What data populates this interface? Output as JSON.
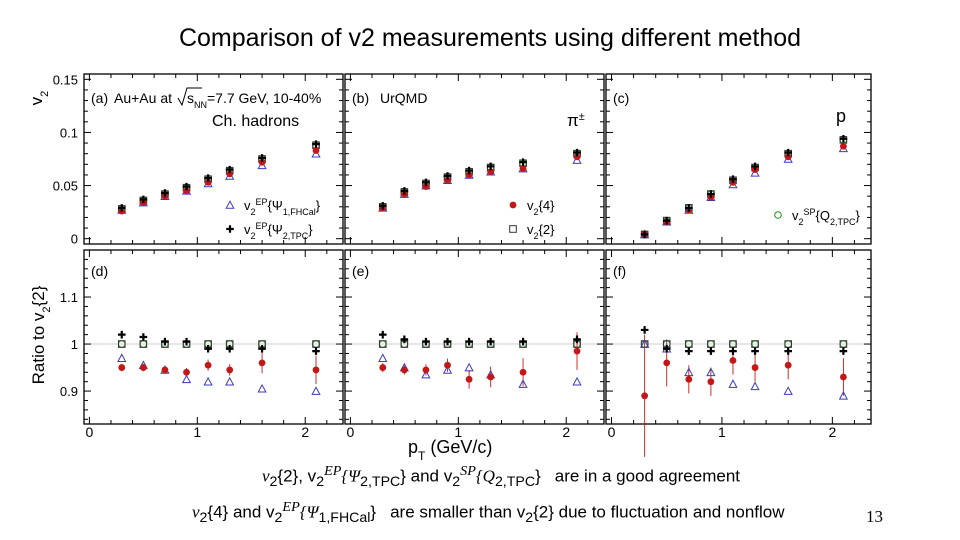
{
  "title": "Comparison of v2 measurements using different method",
  "page_number": "13",
  "notes": {
    "line1": {
      "a": "v",
      "a_sub": "2",
      "b": "{2}, v",
      "b_sub": "2",
      "b_sup": "EP",
      "c": "{Ψ",
      "c_sub": "2,TPC",
      "d": "} and v",
      "d_sub": "2",
      "d_sup": "SP",
      "e": "{Q",
      "e_sub": "2,TPC",
      "f": "}",
      "g": "are in a good agreement"
    },
    "line2": {
      "a": "v",
      "a_sub": "2",
      "b": "{4} and v",
      "b_sub": "2",
      "b_sup": "EP",
      "c": "{Ψ",
      "c_sub": "1,FHCal",
      "d": "}",
      "e": "are smaller than v",
      "e_sub": "2",
      "f": "{2} due to fluctuation and nonflow"
    }
  },
  "chart_data": {
    "type": "scatter",
    "xlabel": "p",
    "xlabel_sub": "T",
    "xlabel_rest": " (GeV/c)",
    "top_ylabel": "v",
    "top_ylabel_sub": "2",
    "bottom_ylabel": "Ratio to v",
    "bottom_ylabel_sub": "2",
    "bottom_ylabel_rest": "{2}",
    "xlim": [
      -0.05,
      2.35
    ],
    "top_ylim": [
      -0.005,
      0.155
    ],
    "bottom_ylim": [
      0.83,
      1.2
    ],
    "x_ticks": [
      "0",
      "1",
      "2"
    ],
    "top_y_ticks": [
      "0",
      "0.05",
      "0.1",
      "0.15"
    ],
    "bottom_y_ticks": [
      "0.9",
      "1",
      "1.1"
    ],
    "reference_line": 1,
    "series_legend": {
      "fhcal": {
        "name": "v",
        "sub": "2",
        "sup": "EP",
        "rest": "{Ψ",
        "rest_sub": "1,FHCal",
        "end": "}"
      },
      "tpc": {
        "name": "v",
        "sub": "2",
        "sup": "EP",
        "rest": "{Ψ",
        "rest_sub": "2,TPC",
        "end": "}"
      },
      "v24": {
        "name": "v",
        "sub": "2",
        "rest": "{4}"
      },
      "v22": {
        "name": "v",
        "sub": "2",
        "rest": "{2}"
      },
      "sp": {
        "name": "v",
        "sub": "2",
        "sup": "SP",
        "rest": "{Q",
        "rest_sub": "2,TPC",
        "end": "}"
      }
    },
    "colors": {
      "fhcal": "#3b3bbf",
      "tpc": "#000000",
      "v24": "#c41818",
      "v22": "#333333",
      "sp": "#1f8a1f",
      "ref": "#cfcfcf"
    },
    "panels": [
      {
        "label": "(a)",
        "texts": [
          "Au+Au at ",
          "s",
          "NN",
          "=7.7 GeV, 10-40%"
        ],
        "species": "Ch. hadrons",
        "legend": [
          "fhcal",
          "tpc"
        ],
        "x": [
          0.3,
          0.5,
          0.7,
          0.9,
          1.1,
          1.3,
          1.6,
          2.1
        ],
        "top": {
          "v22": [
            0.028,
            0.036,
            0.042,
            0.048,
            0.056,
            0.064,
            0.075,
            0.088
          ],
          "tpc": [
            0.029,
            0.037,
            0.043,
            0.049,
            0.057,
            0.065,
            0.076,
            0.089
          ],
          "fhcal": [
            0.027,
            0.034,
            0.04,
            0.045,
            0.052,
            0.059,
            0.069,
            0.08
          ],
          "v24": [
            0.026,
            0.034,
            0.04,
            0.045,
            0.053,
            0.061,
            0.072,
            0.083
          ],
          "sp": [
            0.028,
            0.036,
            0.042,
            0.048,
            0.056,
            0.064,
            0.075,
            0.088
          ]
        },
        "bottom": {
          "v22": [
            1.0,
            1.0,
            1.0,
            1.0,
            1.0,
            1.0,
            1.0,
            1.0
          ],
          "tpc": [
            1.02,
            1.015,
            1.005,
            1.005,
            0.99,
            0.99,
            0.99,
            0.985
          ],
          "fhcal": [
            0.97,
            0.955,
            0.945,
            0.925,
            0.92,
            0.92,
            0.905,
            0.9
          ],
          "v24": [
            0.95,
            0.95,
            0.945,
            0.94,
            0.955,
            0.945,
            0.96,
            0.945
          ],
          "v24_err": [
            0.008,
            0.008,
            0.008,
            0.009,
            0.012,
            0.012,
            0.022,
            0.03
          ],
          "sp": [
            1.0,
            1.0,
            1.0,
            1.0,
            1.0,
            1.0,
            1.0,
            1.0
          ]
        },
        "bottom_label": "(d)"
      },
      {
        "label": "(b)",
        "texts": [
          "UrQMD"
        ],
        "species": "π",
        "species_sup": "±",
        "legend": [
          "v24",
          "v22"
        ],
        "x": [
          0.3,
          0.5,
          0.7,
          0.9,
          1.1,
          1.3,
          1.6,
          2.1
        ],
        "top": {
          "v22": [
            0.03,
            0.044,
            0.052,
            0.058,
            0.063,
            0.067,
            0.071,
            0.08
          ],
          "tpc": [
            0.031,
            0.045,
            0.053,
            0.059,
            0.064,
            0.068,
            0.072,
            0.081
          ],
          "fhcal": [
            0.029,
            0.042,
            0.05,
            0.055,
            0.06,
            0.063,
            0.066,
            0.074
          ],
          "v24": [
            0.029,
            0.042,
            0.049,
            0.055,
            0.06,
            0.063,
            0.066,
            0.077
          ],
          "sp": [
            0.03,
            0.044,
            0.052,
            0.058,
            0.063,
            0.067,
            0.071,
            0.08
          ]
        },
        "bottom": {
          "v22": [
            1.0,
            1.0,
            1.0,
            1.0,
            1.0,
            1.0,
            1.0,
            1.0
          ],
          "tpc": [
            1.02,
            1.01,
            1.005,
            1.005,
            1.005,
            1.005,
            1.005,
            1.01
          ],
          "fhcal": [
            0.97,
            0.95,
            0.935,
            0.945,
            0.95,
            0.935,
            0.915,
            0.92
          ],
          "v24": [
            0.95,
            0.945,
            0.945,
            0.955,
            0.925,
            0.93,
            0.94,
            0.985
          ],
          "v24_err": [
            0.01,
            0.01,
            0.012,
            0.014,
            0.02,
            0.022,
            0.03,
            0.04
          ],
          "sp": [
            1.0,
            1.0,
            1.0,
            1.0,
            1.0,
            1.0,
            1.0,
            1.0
          ]
        },
        "bottom_label": "(e)"
      },
      {
        "label": "(c)",
        "texts": [],
        "species": "p",
        "legend": [
          "sp"
        ],
        "x": [
          0.3,
          0.5,
          0.7,
          0.9,
          1.1,
          1.3,
          1.6,
          2.1
        ],
        "top": {
          "v22": [
            0.004,
            0.017,
            0.029,
            0.042,
            0.055,
            0.067,
            0.08,
            0.093
          ],
          "tpc": [
            0.004,
            0.017,
            0.029,
            0.042,
            0.056,
            0.068,
            0.081,
            0.094
          ],
          "fhcal": [
            0.004,
            0.016,
            0.027,
            0.039,
            0.051,
            0.062,
            0.075,
            0.085
          ],
          "v24": [
            0.004,
            0.016,
            0.027,
            0.039,
            0.053,
            0.065,
            0.077,
            0.087
          ],
          "sp": [
            0.004,
            0.017,
            0.029,
            0.042,
            0.055,
            0.067,
            0.08,
            0.093
          ]
        },
        "bottom": {
          "v22": [
            1.0,
            1.0,
            1.0,
            1.0,
            1.0,
            1.0,
            1.0,
            1.0
          ],
          "tpc": [
            1.03,
            0.99,
            0.985,
            0.985,
            0.985,
            0.985,
            0.985,
            0.985
          ],
          "fhcal": [
            1.0,
            0.99,
            0.94,
            0.94,
            0.915,
            0.91,
            0.9,
            0.89
          ],
          "v24": [
            0.89,
            0.96,
            0.925,
            0.92,
            0.965,
            0.95,
            0.955,
            0.93
          ],
          "v24_err": [
            0.13,
            0.05,
            0.03,
            0.03,
            0.03,
            0.03,
            0.03,
            0.04
          ],
          "sp": [
            1.0,
            1.0,
            1.0,
            1.0,
            1.0,
            1.0,
            1.0,
            1.0
          ]
        },
        "bottom_label": "(f)"
      }
    ]
  }
}
